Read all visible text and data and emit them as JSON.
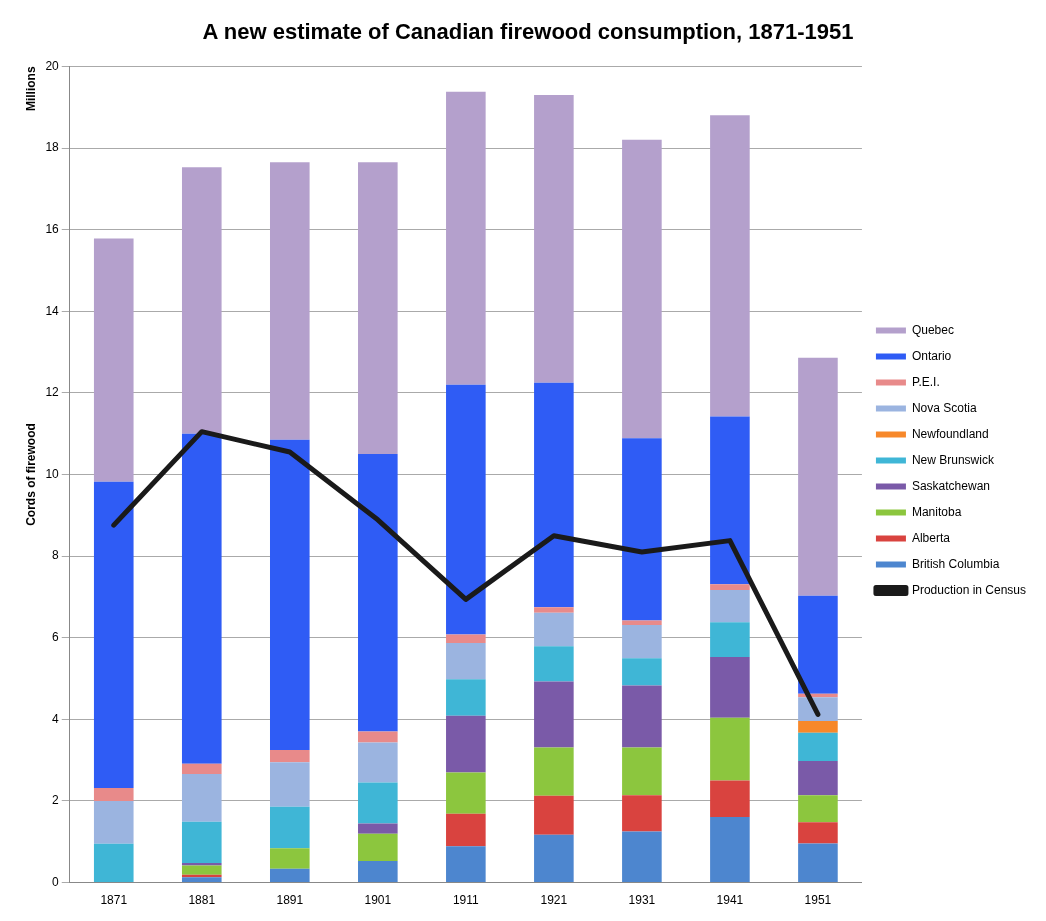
{
  "chart_data": {
    "type": "bar",
    "title": "A new estimate of Canadian firewood consumption, 1871-1951",
    "ylabel": "Cords of firewood",
    "annotations": [
      "Millions"
    ],
    "categories": [
      "1871",
      "1881",
      "1891",
      "1901",
      "1911",
      "1921",
      "1931",
      "1941",
      "1951"
    ],
    "stacked": true,
    "ylim": [
      0,
      20
    ],
    "yticks": [
      0,
      2,
      4,
      6,
      8,
      10,
      12,
      14,
      16,
      18,
      20
    ],
    "grid": "y",
    "legend": "right",
    "marker": "none",
    "line_style": "solid",
    "series": [
      {
        "name": "British Columbia",
        "color": "#4d86cf",
        "values": [
          0,
          0.13,
          0.34,
          0.53,
          0.89,
          1.17,
          1.25,
          1.61,
          0.96
        ]
      },
      {
        "name": "Alberta",
        "color": "#d9433f",
        "values": [
          0,
          0.06,
          0,
          0,
          0.8,
          0.96,
          0.89,
          0.89,
          0.52
        ]
      },
      {
        "name": "Manitoba",
        "color": "#8cc63e",
        "values": [
          0,
          0.23,
          0.5,
          0.67,
          1.01,
          1.18,
          1.17,
          1.54,
          0.66
        ]
      },
      {
        "name": "Saskatchewan",
        "color": "#7a5aa8",
        "values": [
          0,
          0.06,
          0,
          0.25,
          1.39,
          1.62,
          1.52,
          1.49,
          0.84
        ]
      },
      {
        "name": "New Brunswick",
        "color": "#3fb6d6",
        "values": [
          0.95,
          1.01,
          1.02,
          1.0,
          0.89,
          0.86,
          0.67,
          0.85,
          0.69
        ]
      },
      {
        "name": "Newfoundland",
        "color": "#f7882a",
        "values": [
          0,
          0,
          0,
          0,
          0,
          0,
          0,
          0,
          0.29
        ]
      },
      {
        "name": "Nova Scotia",
        "color": "#9bb4e0",
        "values": [
          1.05,
          1.17,
          1.09,
          0.98,
          0.89,
          0.82,
          0.81,
          0.79,
          0.58
        ]
      },
      {
        "name": "P.E.I.",
        "color": "#e88a8a",
        "values": [
          0.32,
          0.25,
          0.3,
          0.27,
          0.21,
          0.14,
          0.11,
          0.14,
          0.09
        ]
      },
      {
        "name": "Ontario",
        "color": "#2f5cf5",
        "values": [
          7.5,
          8.09,
          7.6,
          6.8,
          6.12,
          5.5,
          4.47,
          4.11,
          2.4
        ]
      },
      {
        "name": "Quebec",
        "color": "#b4a0cc",
        "values": [
          5.96,
          6.53,
          6.8,
          7.15,
          7.18,
          7.05,
          7.31,
          7.38,
          5.83
        ]
      },
      {
        "name": "Production in Census",
        "type": "line",
        "color": "#1a1a1a",
        "values": [
          8.76,
          11.05,
          10.55,
          8.89,
          6.94,
          8.5,
          8.1,
          8.38,
          4.12
        ]
      }
    ]
  }
}
